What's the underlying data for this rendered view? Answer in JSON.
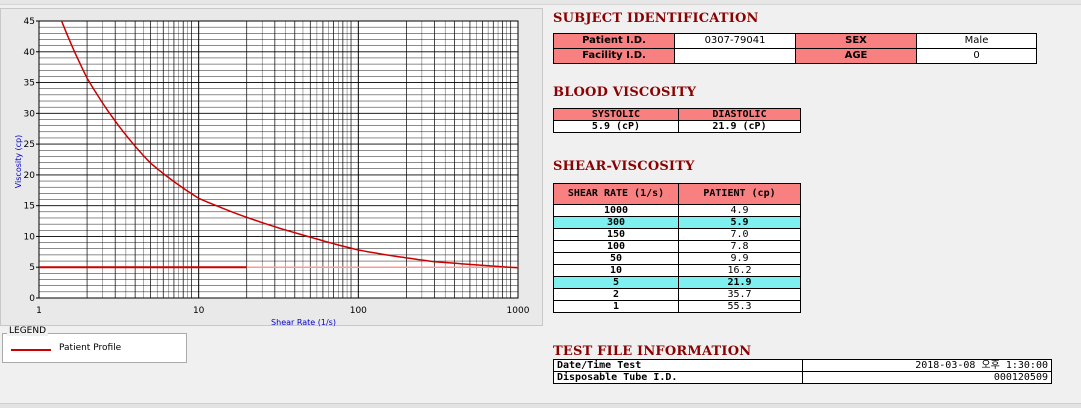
{
  "chart_data": {
    "type": "line",
    "xscale": "log",
    "xlabel": "Shear Rate (1/s)",
    "ylabel": "Viscosity (cp)",
    "xlim": [
      1,
      1000
    ],
    "ylim": [
      0,
      45
    ],
    "x_ticks": [
      "1",
      "10",
      "100",
      "1000"
    ],
    "y_ticks": [
      "0",
      "5",
      "10",
      "15",
      "20",
      "25",
      "30",
      "35",
      "40",
      "45"
    ],
    "grid": true,
    "series": [
      {
        "name": "Patient Profile",
        "color": "#cc0000",
        "x": [
          1,
          2,
          5,
          10,
          50,
          100,
          150,
          300,
          1000
        ],
        "y": [
          55.3,
          35.7,
          21.9,
          16.2,
          9.9,
          7.8,
          7.0,
          5.9,
          4.9
        ]
      }
    ],
    "reference_line": {
      "y": 5,
      "x_end": 20,
      "color": "#cc0000"
    },
    "legend_placement": "bottom-left"
  },
  "legend": {
    "title": "LEGEND",
    "label": "Patient Profile"
  },
  "subject": {
    "title": "SUBJECT IDENTIFICATION",
    "patient_id_label": "Patient I.D.",
    "patient_id_value": "0307-79041",
    "sex_label": "SEX",
    "sex_value": "Male",
    "facility_id_label": "Facility I.D.",
    "facility_id_value": "",
    "age_label": "AGE",
    "age_value": "0"
  },
  "blood": {
    "title": "BLOOD VISCOSITY",
    "systolic_label": "SYSTOLIC",
    "diastolic_label": "DIASTOLIC",
    "systolic_value": "5.9 (cP)",
    "diastolic_value": "21.9 (cP)"
  },
  "shear": {
    "title": "SHEAR-VISCOSITY",
    "rate_header": "SHEAR RATE (1/s)",
    "patient_header": "PATIENT (cp)",
    "rows": [
      {
        "rate": "1000",
        "patient": "4.9",
        "highlight": false
      },
      {
        "rate": "300",
        "patient": "5.9",
        "highlight": true
      },
      {
        "rate": "150",
        "patient": "7.0",
        "highlight": false
      },
      {
        "rate": "100",
        "patient": "7.8",
        "highlight": false
      },
      {
        "rate": "50",
        "patient": "9.9",
        "highlight": false
      },
      {
        "rate": "10",
        "patient": "16.2",
        "highlight": false
      },
      {
        "rate": "5",
        "patient": "21.9",
        "highlight": true
      },
      {
        "rate": "2",
        "patient": "35.7",
        "highlight": false
      },
      {
        "rate": "1",
        "patient": "55.3",
        "highlight": false
      }
    ]
  },
  "testfile": {
    "title": "TEST FILE INFORMATION",
    "datetime_label": "Date/Time Test",
    "datetime_value": "2018-03-08  오후 1:30:00",
    "tube_label": "Disposable Tube I.D.",
    "tube_value": "000120509"
  }
}
